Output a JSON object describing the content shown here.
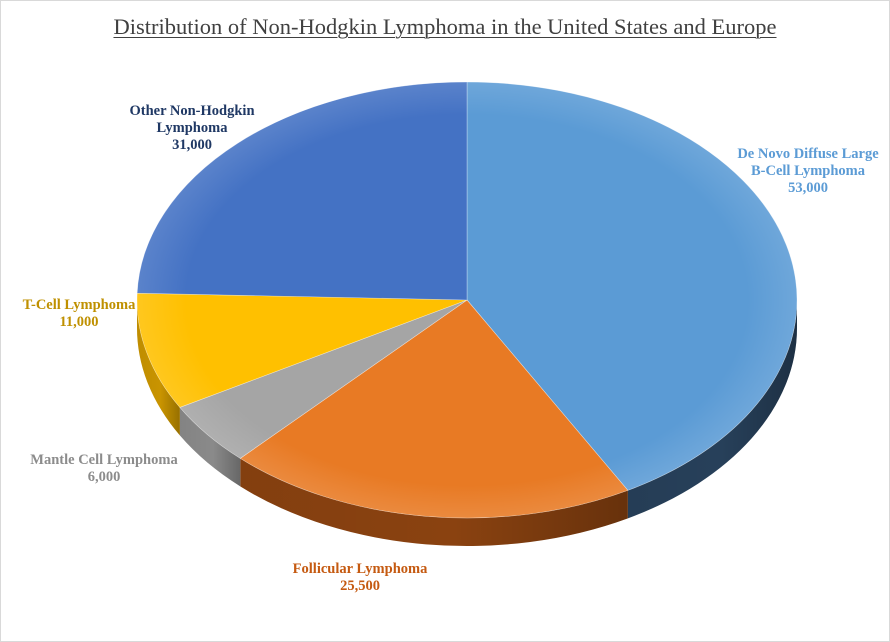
{
  "chart_data": {
    "type": "pie",
    "title": "Distribution of Non-Hodgkin Lymphoma in the United States and Europe",
    "slices": [
      {
        "name_lines": [
          "De Novo Diffuse Large",
          "B-Cell Lymphoma"
        ],
        "value": 53000,
        "value_label": "53,000",
        "color": "#5b9bd5",
        "side_color": "#27405a",
        "label_color": "#5b9bd5"
      },
      {
        "name_lines": [
          "Follicular Lymphoma"
        ],
        "value": 25500,
        "value_label": "25,500",
        "color": "#e87a24",
        "side_color": "#8a4210",
        "label_color": "#c55a11"
      },
      {
        "name_lines": [
          "Mantle Cell Lymphoma"
        ],
        "value": 6000,
        "value_label": "6,000",
        "color": "#a5a5a5",
        "side_color": "#8a8a8a",
        "label_color": "#8c8c8c"
      },
      {
        "name_lines": [
          "T-Cell Lymphoma"
        ],
        "value": 11000,
        "value_label": "11,000",
        "color": "#ffc000",
        "side_color": "#c99400",
        "label_color": "#bf9000"
      },
      {
        "name_lines": [
          "Other Non-Hodgkin",
          "Lymphoma"
        ],
        "value": 31000,
        "value_label": "31,000",
        "color": "#4472c4",
        "side_color": "#2f5597",
        "label_color": "#1f3864"
      }
    ],
    "start_angle_deg": -90,
    "direction": "clockwise",
    "perspective": "3d-tilted",
    "legend": "none",
    "data_labels": "outside"
  }
}
